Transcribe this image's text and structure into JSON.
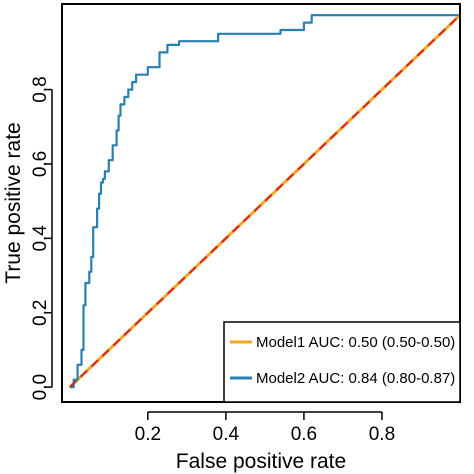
{
  "chart_data": {
    "type": "line",
    "title": "",
    "xlabel": "False positive rate",
    "ylabel": "True positive rate",
    "xlim": [
      -0.02,
      1.0
    ],
    "ylim": [
      -0.04,
      1.03
    ],
    "xticks": [
      {
        "value": 0.2,
        "label": "0.2"
      },
      {
        "value": 0.4,
        "label": "0.4"
      },
      {
        "value": 0.6,
        "label": "0.6"
      },
      {
        "value": 0.8,
        "label": "0.8"
      }
    ],
    "yticks": [
      {
        "value": 0.0,
        "label": "0.0"
      },
      {
        "value": 0.2,
        "label": "0.2"
      },
      {
        "value": 0.4,
        "label": "0.4"
      },
      {
        "value": 0.6,
        "label": "0.6"
      },
      {
        "value": 0.8,
        "label": "0.8"
      }
    ],
    "grid": false,
    "legend_position": "bottom-right",
    "reference_line": {
      "x": [
        0,
        1
      ],
      "y": [
        0,
        1
      ],
      "color": "#d62728",
      "style": "dashed"
    },
    "series": [
      {
        "name": "Model1 AUC: 0.50 (0.50-0.50)",
        "color": "#f5a623",
        "x": [
          0,
          1
        ],
        "y": [
          0,
          1
        ]
      },
      {
        "name": "Model2 AUC: 0.84 (0.80-0.87)",
        "color": "#2a7fb0",
        "x": [
          0,
          0.01,
          0.01,
          0.02,
          0.02,
          0.03,
          0.03,
          0.035,
          0.035,
          0.04,
          0.04,
          0.05,
          0.05,
          0.055,
          0.055,
          0.06,
          0.06,
          0.07,
          0.07,
          0.075,
          0.075,
          0.08,
          0.08,
          0.085,
          0.085,
          0.09,
          0.09,
          0.1,
          0.1,
          0.11,
          0.11,
          0.12,
          0.12,
          0.125,
          0.125,
          0.13,
          0.13,
          0.14,
          0.14,
          0.15,
          0.15,
          0.16,
          0.16,
          0.17,
          0.17,
          0.2,
          0.2,
          0.23,
          0.23,
          0.25,
          0.25,
          0.28,
          0.28,
          0.38,
          0.38,
          0.54,
          0.54,
          0.6,
          0.6,
          0.62,
          0.62,
          1.0
        ],
        "y": [
          0,
          0,
          0.02,
          0.02,
          0.06,
          0.06,
          0.1,
          0.1,
          0.22,
          0.22,
          0.28,
          0.28,
          0.31,
          0.31,
          0.35,
          0.35,
          0.43,
          0.43,
          0.48,
          0.48,
          0.52,
          0.52,
          0.55,
          0.55,
          0.56,
          0.56,
          0.58,
          0.58,
          0.61,
          0.61,
          0.65,
          0.65,
          0.69,
          0.69,
          0.73,
          0.73,
          0.76,
          0.76,
          0.78,
          0.78,
          0.8,
          0.8,
          0.82,
          0.82,
          0.84,
          0.84,
          0.86,
          0.86,
          0.9,
          0.9,
          0.92,
          0.92,
          0.93,
          0.93,
          0.95,
          0.95,
          0.96,
          0.96,
          0.98,
          0.98,
          1.0,
          1.0
        ]
      }
    ]
  }
}
